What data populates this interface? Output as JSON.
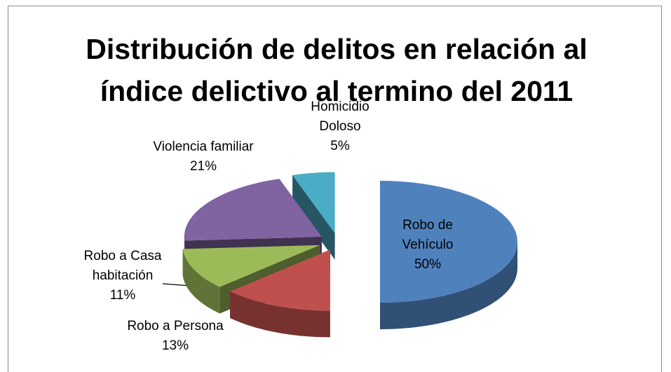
{
  "chart_data": {
    "type": "pie",
    "title": "Distribución de delitos en relación al índice delictivo al termino del 2011",
    "categories": [
      "Robo de Vehículo",
      "Robo a Persona",
      "Robo a Casa habitación",
      "Violencia familiar",
      "Homicidio Doloso"
    ],
    "values": [
      50,
      13,
      11,
      21,
      5
    ],
    "value_labels": [
      "50%",
      "13%",
      "11%",
      "21%",
      "5%"
    ],
    "colors": [
      "#4f81bd",
      "#c0504d",
      "#9bbb59",
      "#8064a2",
      "#4bacc6"
    ]
  }
}
